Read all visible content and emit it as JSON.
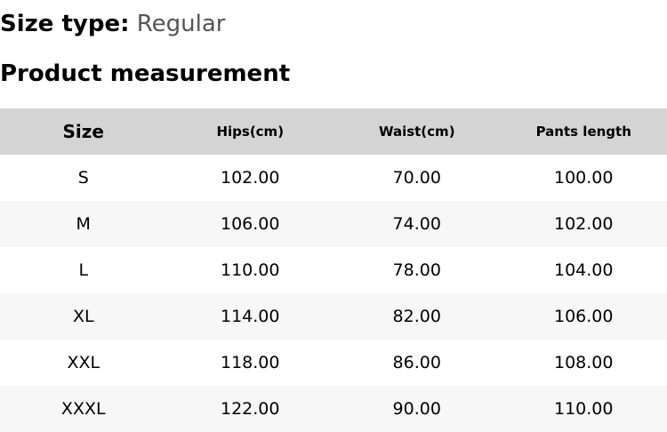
{
  "size_type": {
    "label": "Size type:",
    "value": "Regular"
  },
  "section_title": "Product measurement",
  "table": {
    "headers": [
      "Size",
      "Hips(cm)",
      "Waist(cm)",
      "Pants length"
    ],
    "rows": [
      [
        "S",
        "102.00",
        "70.00",
        "100.00"
      ],
      [
        "M",
        "106.00",
        "74.00",
        "102.00"
      ],
      [
        "L",
        "110.00",
        "78.00",
        "104.00"
      ],
      [
        "XL",
        "114.00",
        "82.00",
        "106.00"
      ],
      [
        "XXL",
        "118.00",
        "86.00",
        "108.00"
      ],
      [
        "XXXL",
        "122.00",
        "90.00",
        "110.00"
      ]
    ]
  },
  "colors": {
    "header_bg": "#d4d4d4",
    "alt_row_bg": "#f7f7f7",
    "value_text": "#555555"
  }
}
